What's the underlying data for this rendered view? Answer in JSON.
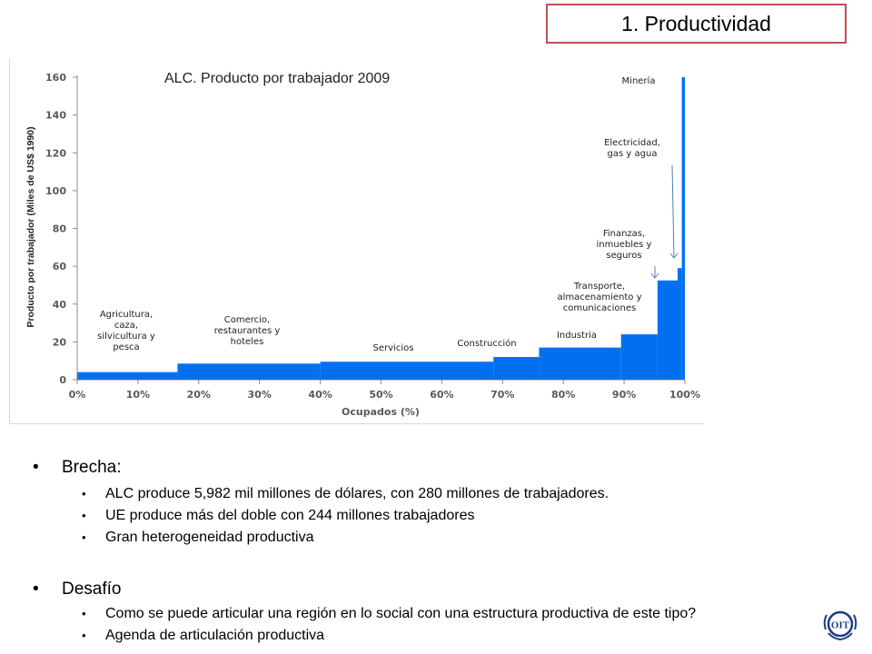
{
  "slide_title": "1. Productividad",
  "chart_data": {
    "type": "area",
    "title": "ALC. Producto por trabajador 2009",
    "xlabel": "Ocupados (%)",
    "ylabel": "Producto por trabajador (Miles de US$ 1990)",
    "xlim": [
      0,
      100
    ],
    "ylim": [
      0,
      160
    ],
    "x_ticks": [
      "0%",
      "10%",
      "20%",
      "30%",
      "40%",
      "50%",
      "60%",
      "70%",
      "80%",
      "90%",
      "100%"
    ],
    "y_ticks": [
      "0",
      "20",
      "40",
      "60",
      "80",
      "100",
      "120",
      "140",
      "160"
    ],
    "bar_color": "#0070f0",
    "segments": [
      {
        "label": "Agricultura, caza, silvicultura y pesca",
        "x_start": 0,
        "x_end": 16.5,
        "value": 4
      },
      {
        "label": "Comercio, restaurantes y hoteles",
        "x_start": 16.5,
        "x_end": 40,
        "value": 8.5
      },
      {
        "label": "Servicios",
        "x_start": 40,
        "x_end": 68.5,
        "value": 9.5
      },
      {
        "label": "Construcción",
        "x_start": 68.5,
        "x_end": 76,
        "value": 12
      },
      {
        "label": "Industria",
        "x_start": 76,
        "x_end": 89.5,
        "value": 17
      },
      {
        "label": "Transporte, almacenamiento y comunicaciones",
        "x_start": 89.5,
        "x_end": 95.5,
        "value": 24
      },
      {
        "label": "Finanzas, inmuebles y seguros",
        "x_start": 95.5,
        "x_end": 98.8,
        "value": 52.5
      },
      {
        "label": "Electricidad, gas y agua",
        "x_start": 98.8,
        "x_end": 99.5,
        "value": 59
      },
      {
        "label": "Minería",
        "x_start": 99.5,
        "x_end": 100,
        "value": 160
      }
    ]
  },
  "bullets": [
    {
      "text": "Brecha:",
      "sub": [
        "ALC produce 5,982 mil millones de dólares, con 280 millones de trabajadores.",
        "UE produce  más del doble con 244 millones trabajadores",
        "Gran heterogeneidad productiva"
      ]
    },
    {
      "text": "Desafío",
      "sub": [
        "Como se puede articular una región en lo social con una estructura productiva de este tipo?",
        "Agenda de  articulación productiva"
      ]
    }
  ],
  "logo_text": "OIT"
}
